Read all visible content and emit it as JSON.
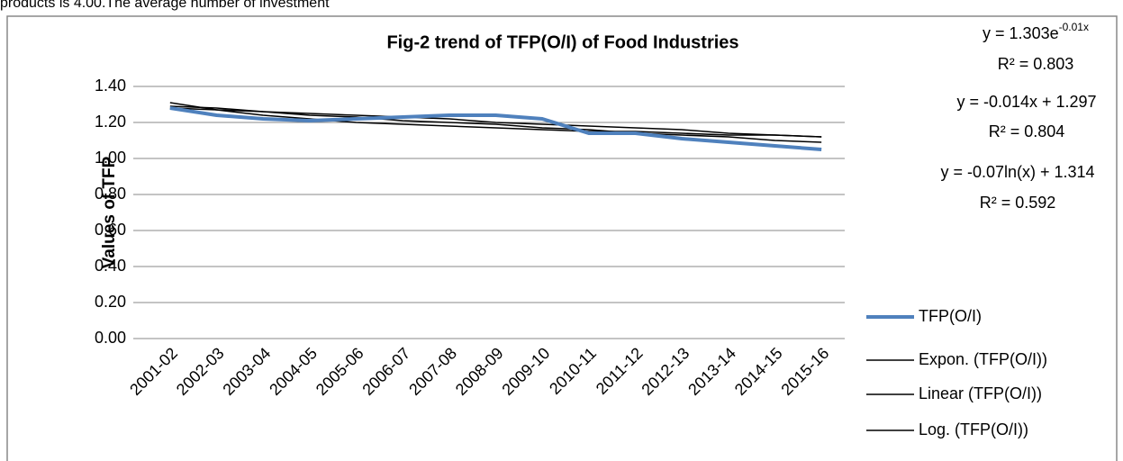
{
  "caption_above": "products is 4.00.The average number of investment",
  "chart_data": {
    "type": "line",
    "title": "Fig-2  trend of TFP(O/I) of Food Industries",
    "y_label": "Values of TFP",
    "categories": [
      "2001-02",
      "2002-03",
      "2003-04",
      "2004-05",
      "2005-06",
      "2006-07",
      "2007-08",
      "2008-09",
      "2009-10",
      "2010-11",
      "2011-12",
      "2012-13",
      "2013-14",
      "2014-15",
      "2015-16"
    ],
    "series": [
      {
        "name": "TFP(O/I)",
        "color": "#4f81bd",
        "width": 4,
        "values": [
          1.28,
          1.24,
          1.22,
          1.21,
          1.22,
          1.23,
          1.24,
          1.24,
          1.22,
          1.14,
          1.14,
          1.11,
          1.09,
          1.07,
          1.05
        ]
      },
      {
        "name": "Expon. (TFP(O/I))",
        "color": "#000000",
        "width": 1.5,
        "values": [
          1.29,
          1.28,
          1.26,
          1.25,
          1.24,
          1.23,
          1.22,
          1.2,
          1.19,
          1.18,
          1.17,
          1.16,
          1.14,
          1.13,
          1.12
        ]
      },
      {
        "name": "Linear (TFP(O/I))",
        "color": "#000000",
        "width": 1.5,
        "values": [
          1.28,
          1.27,
          1.26,
          1.24,
          1.23,
          1.21,
          1.2,
          1.19,
          1.17,
          1.16,
          1.14,
          1.13,
          1.12,
          1.1,
          1.09
        ]
      },
      {
        "name": "Log. (TFP(O/I))",
        "color": "#000000",
        "width": 1.5,
        "values": [
          1.31,
          1.27,
          1.24,
          1.22,
          1.2,
          1.19,
          1.18,
          1.17,
          1.16,
          1.15,
          1.15,
          1.14,
          1.13,
          1.13,
          1.12
        ]
      }
    ],
    "ylim": [
      0,
      1.4
    ],
    "yticks": [
      {
        "value": 0,
        "label": "0.00"
      },
      {
        "value": 0.2,
        "label": "0.20"
      },
      {
        "value": 0.4,
        "label": "0.40"
      },
      {
        "value": 0.6,
        "label": "0.60"
      },
      {
        "value": 0.8,
        "label": "0.80"
      },
      {
        "value": 1,
        "label": "1.00"
      },
      {
        "value": 1.2,
        "label": "1.20"
      },
      {
        "value": 1.4,
        "label": "1.40"
      }
    ],
    "grid": true,
    "legend": "right",
    "annotations": [
      {
        "main": "y = 1.303e",
        "sup": "-0.01x"
      },
      {
        "main": "R² = 0.803"
      },
      {
        "main": "y = -0.014x + 1.297"
      },
      {
        "main": "R² = 0.804"
      },
      {
        "main": "y = -0.07ln(x) + 1.314"
      },
      {
        "main": "R² = 0.592"
      }
    ]
  }
}
